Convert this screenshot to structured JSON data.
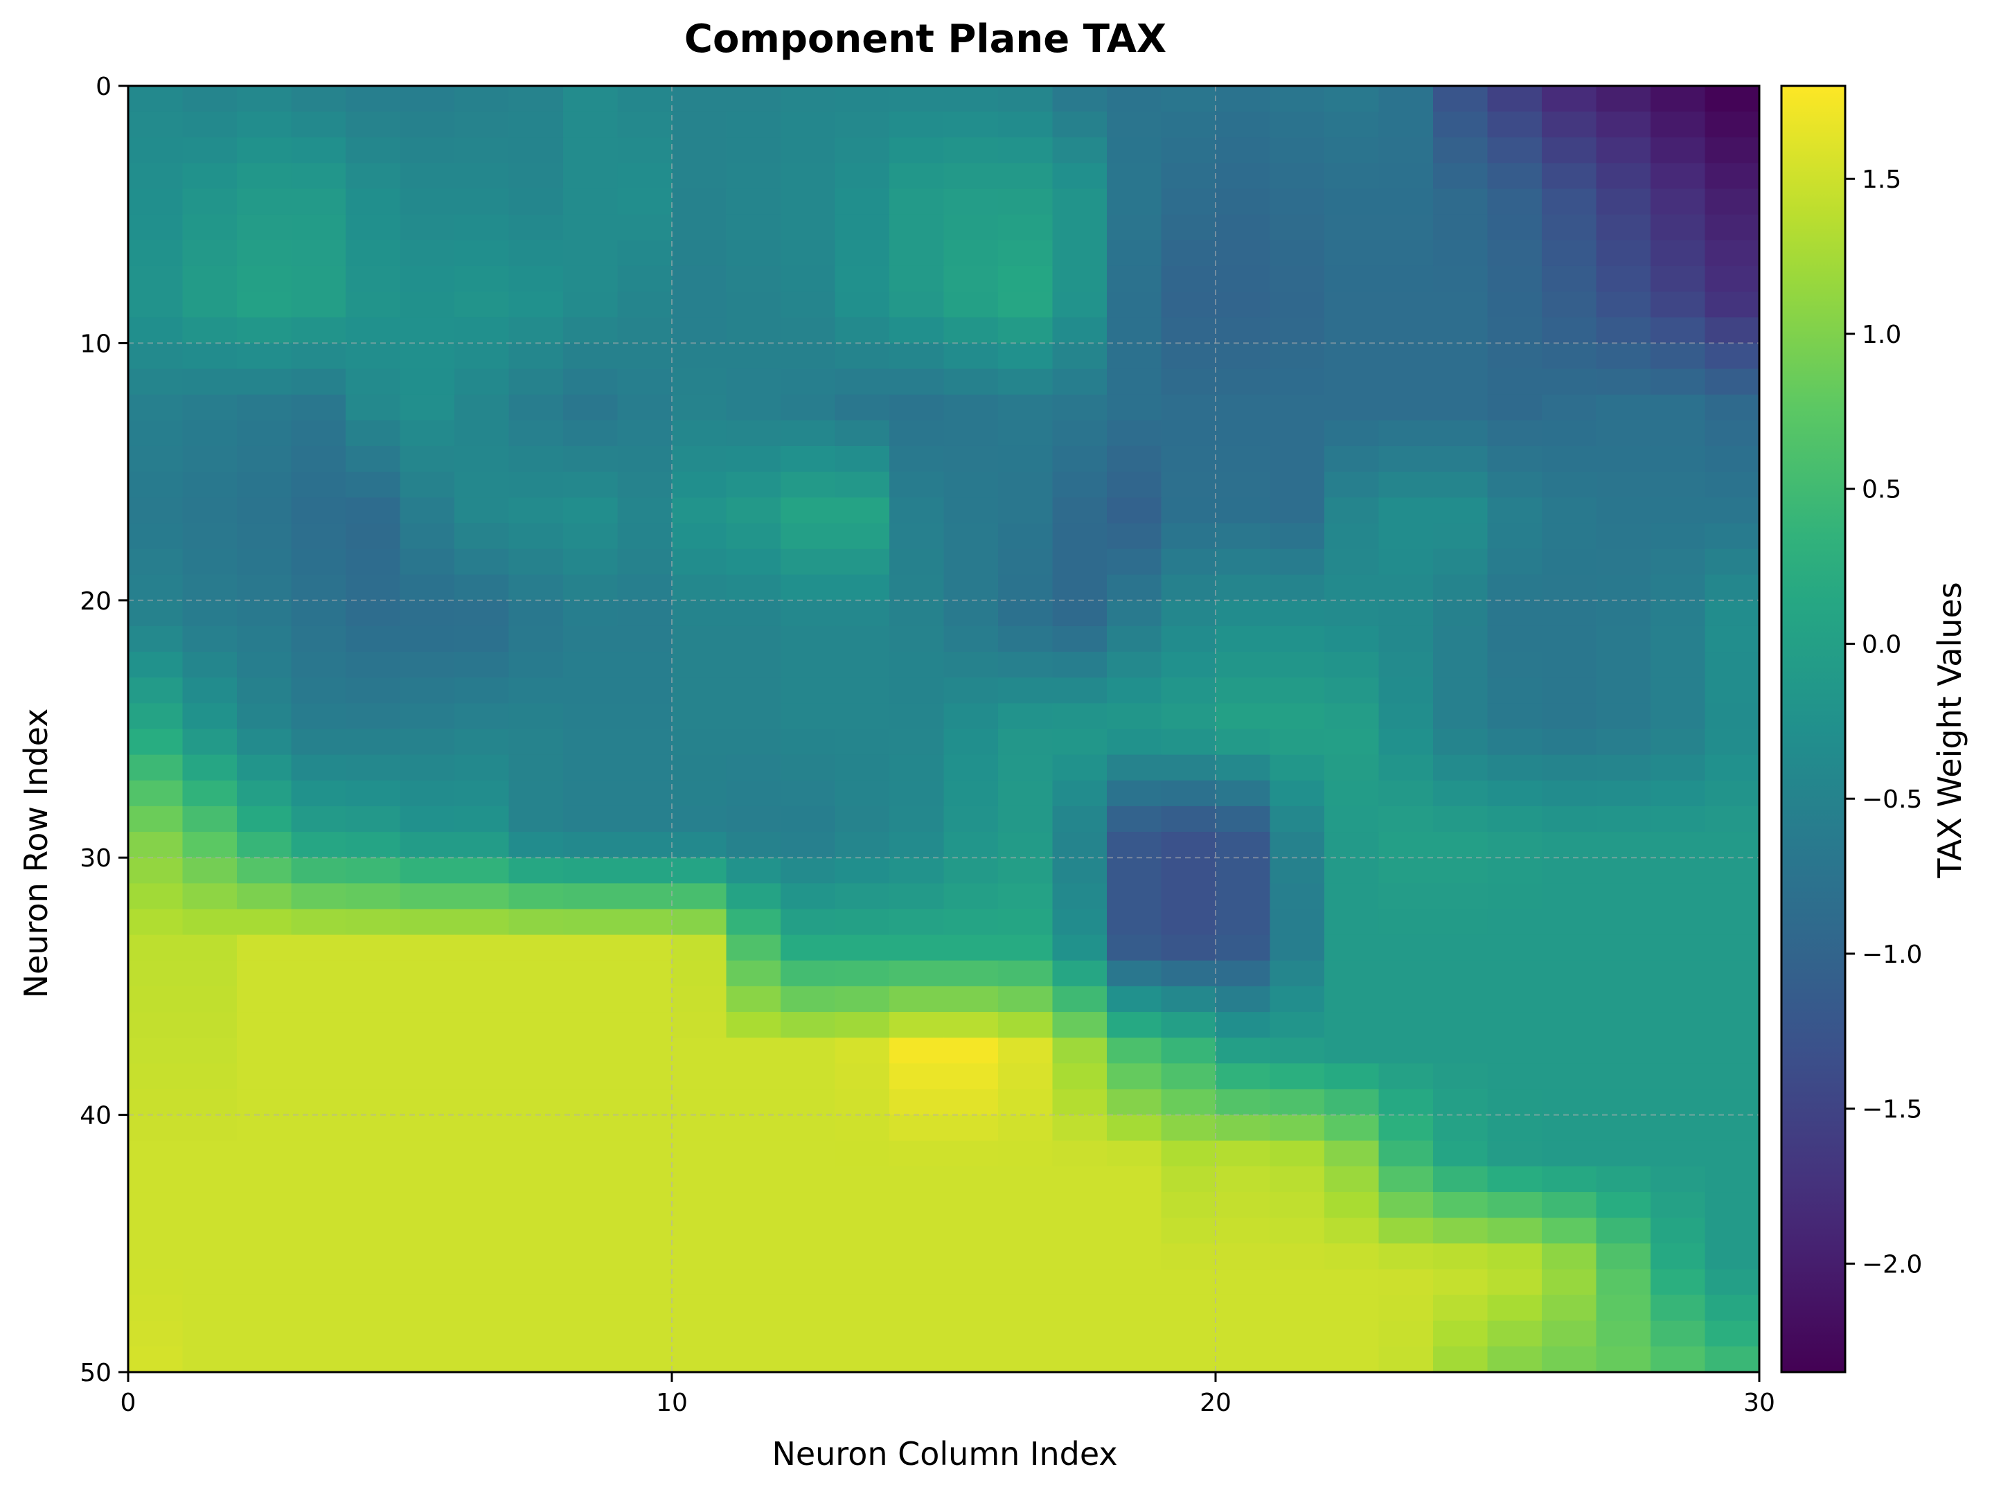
{
  "chart_data": {
    "type": "heatmap",
    "title": "Component Plane TAX",
    "xlabel": "Neuron Column Index",
    "ylabel": "Neuron Row Index",
    "xlim": [
      0,
      30
    ],
    "ylim": [
      50,
      0
    ],
    "x_ticks": [
      0,
      10,
      20,
      30
    ],
    "y_ticks": [
      0,
      10,
      20,
      30,
      40,
      50
    ],
    "grid": true,
    "colorbar": {
      "label": "TAX Weight Values",
      "colormap": "viridis",
      "vmin": -2.35,
      "vmax": 1.8,
      "ticks": [
        -2.0,
        -1.5,
        -1.0,
        -0.5,
        0.0,
        0.5,
        1.0,
        1.5
      ],
      "tick_labels": [
        "−2.0",
        "−1.5",
        "−1.0",
        "−0.5",
        "0.0",
        "0.5",
        "1.0",
        "1.5"
      ]
    },
    "n_rows": 50,
    "n_cols": 30,
    "row_bands": [
      [
        -0.4,
        -0.5,
        -0.45,
        -0.55,
        -0.6,
        -0.6,
        -0.55,
        -0.5,
        -0.35,
        -0.45,
        -0.5,
        -0.5,
        -0.45,
        -0.45,
        -0.45,
        -0.45,
        -0.5,
        -0.7,
        -0.75,
        -0.7,
        -0.75,
        -0.7,
        -0.65,
        -0.75,
        -1.3,
        -1.6,
        -1.9,
        -2.05,
        -2.2,
        -2.35
      ],
      [
        -0.3,
        -0.2,
        -0.1,
        -0.1,
        -0.3,
        -0.4,
        -0.4,
        -0.45,
        -0.35,
        -0.3,
        -0.5,
        -0.45,
        -0.4,
        -0.3,
        -0.1,
        -0.05,
        -0.05,
        -0.2,
        -0.7,
        -0.85,
        -0.9,
        -0.85,
        -0.8,
        -0.8,
        -0.9,
        -1.05,
        -1.3,
        -1.55,
        -1.8,
        -2.0
      ],
      [
        -0.2,
        -0.05,
        0.05,
        0.0,
        -0.2,
        -0.25,
        -0.2,
        -0.25,
        -0.35,
        -0.45,
        -0.55,
        -0.5,
        -0.45,
        -0.25,
        -0.1,
        0.05,
        0.15,
        -0.2,
        -0.8,
        -1.0,
        -1.0,
        -0.95,
        -0.85,
        -0.85,
        -0.85,
        -0.95,
        -1.1,
        -1.3,
        -1.5,
        -1.75
      ],
      [
        -0.55,
        -0.6,
        -0.65,
        -0.7,
        -0.4,
        -0.3,
        -0.45,
        -0.6,
        -0.7,
        -0.6,
        -0.5,
        -0.55,
        -0.6,
        -0.7,
        -0.75,
        -0.7,
        -0.65,
        -0.7,
        -0.8,
        -0.85,
        -0.85,
        -0.85,
        -0.85,
        -0.85,
        -0.85,
        -0.9,
        -0.85,
        -0.8,
        -0.8,
        -0.9
      ],
      [
        -0.65,
        -0.7,
        -0.75,
        -0.85,
        -0.9,
        -0.6,
        -0.4,
        -0.35,
        -0.3,
        -0.45,
        -0.2,
        -0.1,
        0.1,
        0.1,
        -0.55,
        -0.65,
        -0.7,
        -0.9,
        -1.05,
        -0.8,
        -0.8,
        -0.85,
        -0.45,
        -0.3,
        -0.3,
        -0.55,
        -0.65,
        -0.7,
        -0.7,
        -0.7
      ],
      [
        -0.5,
        -0.6,
        -0.65,
        -0.75,
        -0.85,
        -0.85,
        -0.85,
        -0.7,
        -0.6,
        -0.6,
        -0.5,
        -0.5,
        -0.45,
        -0.45,
        -0.5,
        -0.65,
        -0.8,
        -0.9,
        -0.6,
        -0.4,
        -0.3,
        -0.3,
        -0.35,
        -0.4,
        -0.55,
        -0.7,
        -0.7,
        -0.65,
        -0.55,
        -0.3
      ],
      [
        0.15,
        -0.2,
        -0.45,
        -0.6,
        -0.6,
        -0.55,
        -0.5,
        -0.5,
        -0.55,
        -0.55,
        -0.5,
        -0.5,
        -0.45,
        -0.45,
        -0.45,
        -0.3,
        -0.15,
        -0.1,
        -0.1,
        -0.05,
        0.05,
        0.05,
        0.0,
        -0.3,
        -0.55,
        -0.65,
        -0.7,
        -0.65,
        -0.55,
        -0.35
      ],
      [
        1.0,
        0.7,
        0.3,
        0.0,
        -0.05,
        -0.2,
        -0.2,
        -0.5,
        -0.55,
        -0.55,
        -0.55,
        -0.6,
        -0.6,
        -0.5,
        -0.4,
        -0.2,
        -0.1,
        -0.5,
        -1.2,
        -1.3,
        -1.2,
        -0.5,
        -0.1,
        0.0,
        0.0,
        -0.05,
        -0.1,
        -0.1,
        -0.1,
        -0.1
      ],
      [
        1.4,
        1.4,
        1.5,
        1.5,
        1.5,
        1.5,
        1.5,
        1.5,
        1.5,
        1.5,
        1.45,
        0.6,
        0.15,
        0.15,
        0.15,
        0.15,
        0.15,
        -0.3,
        -1.2,
        -1.3,
        -1.2,
        -0.6,
        -0.1,
        -0.1,
        -0.1,
        -0.1,
        -0.1,
        -0.1,
        -0.1,
        -0.1
      ],
      [
        1.45,
        1.45,
        1.5,
        1.5,
        1.5,
        1.5,
        1.5,
        1.5,
        1.5,
        1.5,
        1.5,
        1.5,
        1.5,
        1.55,
        1.75,
        1.75,
        1.6,
        1.2,
        0.6,
        0.4,
        0.0,
        -0.05,
        -0.1,
        -0.1,
        -0.1,
        -0.1,
        -0.1,
        -0.1,
        -0.1,
        -0.1
      ],
      [
        1.5,
        1.5,
        1.5,
        1.5,
        1.5,
        1.5,
        1.5,
        1.5,
        1.5,
        1.5,
        1.5,
        1.5,
        1.5,
        1.5,
        1.5,
        1.5,
        1.5,
        1.5,
        1.5,
        1.35,
        1.4,
        1.35,
        1.1,
        0.45,
        0.1,
        -0.05,
        -0.1,
        -0.1,
        -0.1,
        -0.1
      ],
      [
        1.5,
        1.5,
        1.5,
        1.5,
        1.5,
        1.5,
        1.5,
        1.5,
        1.5,
        1.5,
        1.5,
        1.5,
        1.5,
        1.5,
        1.5,
        1.5,
        1.5,
        1.5,
        1.5,
        1.5,
        1.5,
        1.5,
        1.5,
        1.5,
        1.5,
        1.45,
        1.2,
        0.7,
        0.2,
        -0.1
      ],
      [
        1.55,
        1.5,
        1.5,
        1.5,
        1.5,
        1.5,
        1.5,
        1.5,
        1.5,
        1.5,
        1.5,
        1.5,
        1.5,
        1.5,
        1.5,
        1.5,
        1.5,
        1.5,
        1.5,
        1.5,
        1.5,
        1.5,
        1.5,
        1.45,
        1.2,
        1.0,
        0.9,
        0.85,
        0.7,
        0.5
      ]
    ]
  }
}
